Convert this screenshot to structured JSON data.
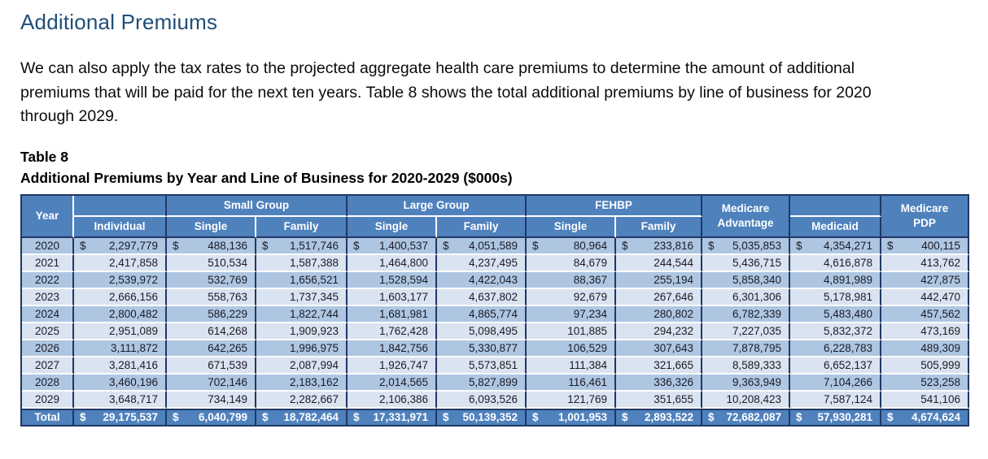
{
  "heading": "Additional Premiums",
  "intro_paragraph": "We can also apply the tax rates to the projected aggregate health care premiums to determine the amount of additional premiums that will be paid for the next ten years. Table 8 shows the total additional premiums by line of business for 2020 through 2029.",
  "table_label": "Table 8",
  "table_caption": "Additional Premiums by Year and Line of Business for 2020-2029 ($000s)",
  "colors": {
    "heading_text": "#1F4E79",
    "header_bg": "#4F81BD",
    "row_stripe_dark": "#AEC6E2",
    "row_stripe_light": "#DAE3F0",
    "border_dark": "#1F3864"
  },
  "table": {
    "currency_symbol": "$",
    "header": {
      "year": "Year",
      "individual": "Individual",
      "small_group": "Small Group",
      "large_group": "Large Group",
      "fehbp": "FEHBP",
      "single": "Single",
      "family": "Family",
      "medicare_advantage_line1": "Medicare",
      "medicare_advantage_line2": "Advantage",
      "medicaid": "Medicaid",
      "medicare_pdp_line1": "Medicare",
      "medicare_pdp_line2": "PDP"
    },
    "rows": [
      {
        "year": "2020",
        "dollar": true,
        "values": [
          "2,297,779",
          "488,136",
          "1,517,746",
          "1,400,537",
          "4,051,589",
          "80,964",
          "233,816",
          "5,035,853",
          "4,354,271",
          "400,115"
        ]
      },
      {
        "year": "2021",
        "dollar": false,
        "values": [
          "2,417,858",
          "510,534",
          "1,587,388",
          "1,464,800",
          "4,237,495",
          "84,679",
          "244,544",
          "5,436,715",
          "4,616,878",
          "413,762"
        ]
      },
      {
        "year": "2022",
        "dollar": false,
        "values": [
          "2,539,972",
          "532,769",
          "1,656,521",
          "1,528,594",
          "4,422,043",
          "88,367",
          "255,194",
          "5,858,340",
          "4,891,989",
          "427,875"
        ]
      },
      {
        "year": "2023",
        "dollar": false,
        "values": [
          "2,666,156",
          "558,763",
          "1,737,345",
          "1,603,177",
          "4,637,802",
          "92,679",
          "267,646",
          "6,301,306",
          "5,178,981",
          "442,470"
        ]
      },
      {
        "year": "2024",
        "dollar": false,
        "values": [
          "2,800,482",
          "586,229",
          "1,822,744",
          "1,681,981",
          "4,865,774",
          "97,234",
          "280,802",
          "6,782,339",
          "5,483,480",
          "457,562"
        ]
      },
      {
        "year": "2025",
        "dollar": false,
        "values": [
          "2,951,089",
          "614,268",
          "1,909,923",
          "1,762,428",
          "5,098,495",
          "101,885",
          "294,232",
          "7,227,035",
          "5,832,372",
          "473,169"
        ]
      },
      {
        "year": "2026",
        "dollar": false,
        "values": [
          "3,111,872",
          "642,265",
          "1,996,975",
          "1,842,756",
          "5,330,877",
          "106,529",
          "307,643",
          "7,878,795",
          "6,228,783",
          "489,309"
        ]
      },
      {
        "year": "2027",
        "dollar": false,
        "values": [
          "3,281,416",
          "671,539",
          "2,087,994",
          "1,926,747",
          "5,573,851",
          "111,384",
          "321,665",
          "8,589,333",
          "6,652,137",
          "505,999"
        ]
      },
      {
        "year": "2028",
        "dollar": false,
        "values": [
          "3,460,196",
          "702,146",
          "2,183,162",
          "2,014,565",
          "5,827,899",
          "116,461",
          "336,326",
          "9,363,949",
          "7,104,266",
          "523,258"
        ]
      },
      {
        "year": "2029",
        "dollar": false,
        "values": [
          "3,648,717",
          "734,149",
          "2,282,667",
          "2,106,386",
          "6,093,526",
          "121,769",
          "351,655",
          "10,208,423",
          "7,587,124",
          "541,106"
        ]
      }
    ],
    "total": {
      "label": "Total",
      "dollar": true,
      "values": [
        "29,175,537",
        "6,040,799",
        "18,782,464",
        "17,331,971",
        "50,139,352",
        "1,001,953",
        "2,893,522",
        "72,682,087",
        "57,930,281",
        "4,674,624"
      ]
    }
  }
}
